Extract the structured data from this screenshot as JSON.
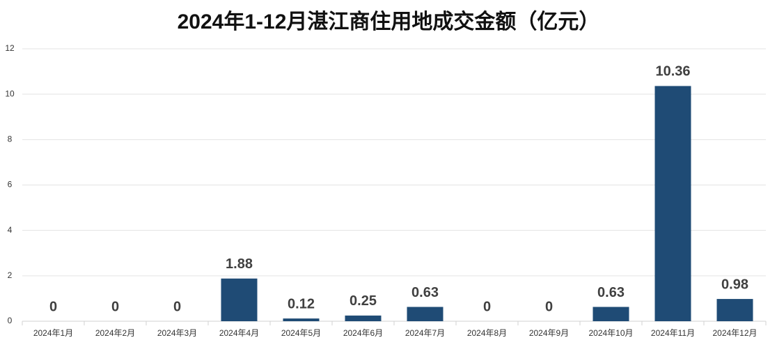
{
  "chart_data": {
    "type": "bar",
    "title": "2024年1-12月湛江商住用地成交金额（亿元）",
    "categories": [
      "2024年1月",
      "2024年2月",
      "2024年3月",
      "2024年4月",
      "2024年5月",
      "2024年6月",
      "2024年7月",
      "2024年8月",
      "2024年9月",
      "2024年10月",
      "2024年11月",
      "2024年12月"
    ],
    "values": [
      0,
      0,
      0,
      1.88,
      0.12,
      0.25,
      0.63,
      0,
      0,
      0.63,
      10.36,
      0.98
    ],
    "color": "#1f4b75",
    "ylim": [
      0,
      12
    ],
    "yticks": [
      0,
      2,
      4,
      6,
      8,
      10,
      12
    ],
    "grid": true
  }
}
